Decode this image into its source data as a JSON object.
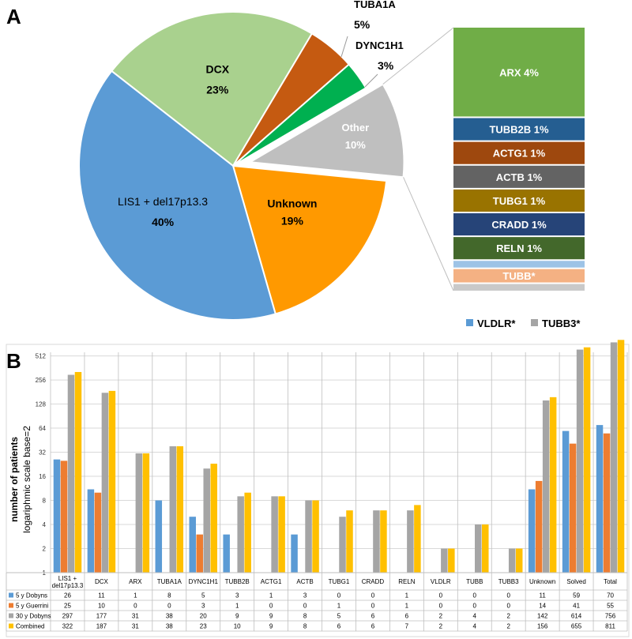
{
  "panel_a_label": "A",
  "panel_b_label": "B",
  "chart_data": [
    {
      "type": "pie",
      "panel": "A",
      "slices": [
        {
          "name": "LIS1 + del17p13.3",
          "value": 40,
          "pct": "40%",
          "color": "#5b9bd5"
        },
        {
          "name": "DCX",
          "value": 23,
          "pct": "23%",
          "color": "#a9d18e"
        },
        {
          "name": "TUBA1A",
          "value": 5,
          "pct": "5%",
          "color": "#c55a11"
        },
        {
          "name": "DYNC1H1",
          "value": 3,
          "pct": "3%",
          "color": "#00b050"
        },
        {
          "name": "Other",
          "value": 10,
          "pct": "10%",
          "color": "#bfbfbf"
        },
        {
          "name": "Unknown",
          "value": 19,
          "pct": "19%",
          "color": "#ff9900"
        }
      ],
      "other_breakdown": [
        {
          "label": "ARX 4%",
          "value": 4,
          "color": "#70ad47"
        },
        {
          "label": "TUBB2B 1%",
          "value": 1,
          "color": "#255e91"
        },
        {
          "label": "ACTG1 1%",
          "value": 1,
          "color": "#9e480e"
        },
        {
          "label": "ACTB 1%",
          "value": 1,
          "color": "#636363"
        },
        {
          "label": "TUBG1 1%",
          "value": 1,
          "color": "#997300"
        },
        {
          "label": "CRADD 1%",
          "value": 1,
          "color": "#264478"
        },
        {
          "label": "RELN 1%",
          "value": 1,
          "color": "#43682b"
        },
        {
          "label": "",
          "value": 0.3,
          "color": "#9dc3e6"
        },
        {
          "label": "TUBB*",
          "value": 0.6,
          "color": "#f4b183"
        },
        {
          "label": "",
          "value": 0.3,
          "color": "#c9c9c9"
        }
      ],
      "legend": [
        {
          "label": "VLDLR*",
          "color": "#5b9bd5"
        },
        {
          "label": "TUBB3*",
          "color": "#a5a5a5"
        }
      ]
    },
    {
      "type": "bar",
      "panel": "B",
      "scale": "log2",
      "ylabel": "number of patients",
      "ylabel2": "logariphmic scale base=2",
      "yticks": [
        1,
        2,
        4,
        8,
        16,
        32,
        64,
        128,
        256,
        512
      ],
      "categories": [
        "LIS1 + del17p13.3",
        "DCX",
        "ARX",
        "TUBA1A",
        "DYNC1H1",
        "TUBB2B",
        "ACTG1",
        "ACTB",
        "TUBG1",
        "CRADD",
        "RELN",
        "VLDLR",
        "TUBB",
        "TUBB3",
        "Unknown",
        "Solved",
        "Total"
      ],
      "series": [
        {
          "name": "5 y Dobyns",
          "color": "#5b9bd5",
          "values": [
            26,
            11,
            1,
            8,
            5,
            3,
            1,
            3,
            0,
            0,
            1,
            0,
            0,
            0,
            11,
            59,
            70
          ]
        },
        {
          "name": "5 y Guerrini",
          "color": "#ed7d31",
          "values": [
            25,
            10,
            0,
            0,
            3,
            1,
            0,
            0,
            1,
            0,
            1,
            0,
            0,
            0,
            14,
            41,
            55
          ]
        },
        {
          "name": "30 y Dobyns",
          "color": "#a5a5a5",
          "values": [
            297,
            177,
            31,
            38,
            20,
            9,
            9,
            8,
            5,
            6,
            6,
            2,
            4,
            2,
            142,
            614,
            756
          ]
        },
        {
          "name": "Combined",
          "color": "#ffc000",
          "values": [
            322,
            187,
            31,
            38,
            23,
            10,
            9,
            8,
            6,
            6,
            7,
            2,
            4,
            2,
            156,
            655,
            811
          ]
        }
      ]
    }
  ]
}
